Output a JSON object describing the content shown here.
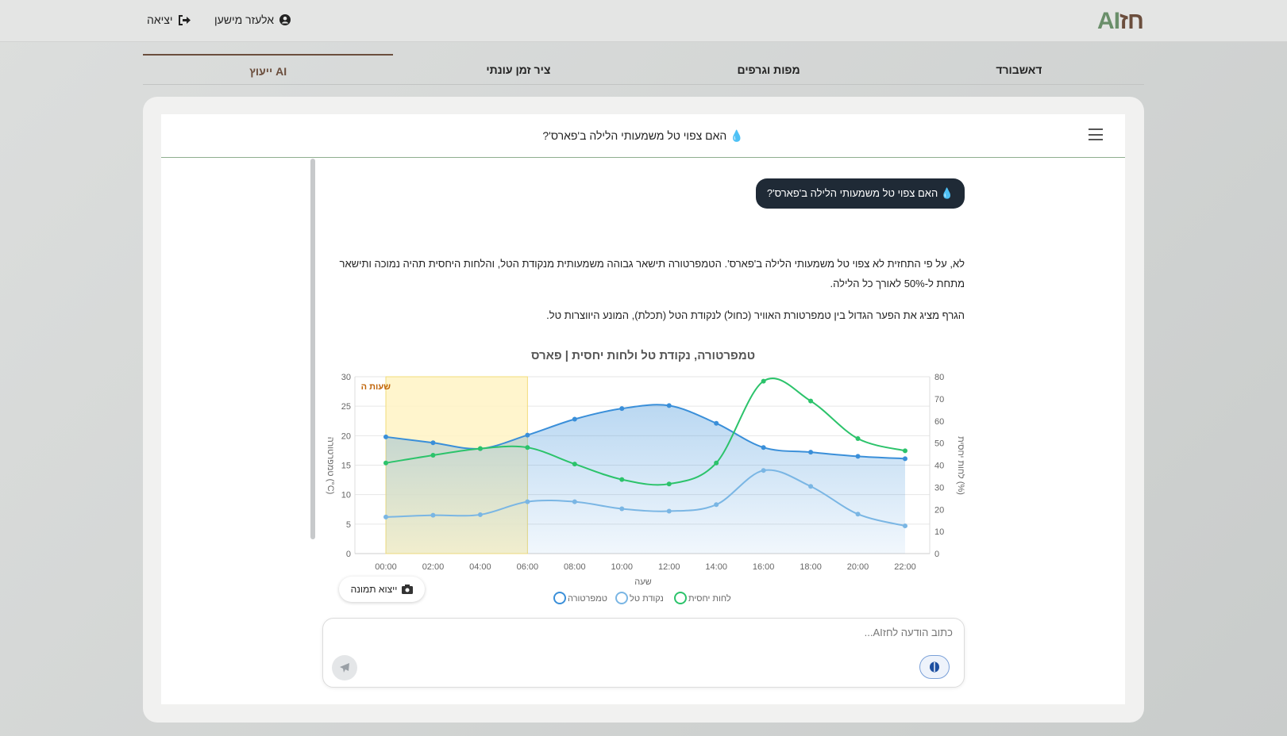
{
  "header": {
    "logo_ai": "AI",
    "logo_he": "חז",
    "user_name": "אלעזר מישען",
    "logout": "יציאה"
  },
  "tabs": [
    {
      "label": "דאשבורד"
    },
    {
      "label": "מפות וגרפים"
    },
    {
      "label": "ציר זמן עונתי"
    },
    {
      "label": "ייעוץ AI"
    }
  ],
  "chat": {
    "title": "💧 האם צפוי טל משמעותי הלילה ב'פארס'?",
    "user_message": "💧 האם צפוי טל משמעותי הלילה ב'פארס'?",
    "answer_p1": "לא, על פי התחזית לא צפוי טל משמעותי הלילה ב'פארס'. הטמפרטורה תישאר גבוהה משמעותית מנקודת הטל, והלחות היחסית תהיה נמוכה ותישאר מתחת ל-50% לאורך כל הלילה.",
    "answer_p2": "הגרף מציג את הפער הגדול בין טמפרטורת האוויר (כחול) לנקודת הטל (תכלת), המונע היווצרות טל.",
    "export_label": "ייצוא תמונה",
    "input_placeholder": "כתוב הודעה לחזAI..."
  },
  "colors": {
    "temp": "#3a8fd9",
    "dew": "#7ab6e4",
    "humidity": "#2cc36b",
    "highlight": "#fff3c4"
  },
  "chart_data": {
    "type": "line",
    "title": "טמפרטורה, נקודת טל ולחות יחסית | פארס",
    "xlabel": "שעה",
    "ylabel": "טמפרטורה (°C)",
    "y2label": "לחות יחסית (%)",
    "x": [
      "00:00",
      "02:00",
      "04:00",
      "06:00",
      "08:00",
      "10:00",
      "12:00",
      "14:00",
      "16:00",
      "18:00",
      "20:00",
      "22:00"
    ],
    "ylim": [
      0,
      30
    ],
    "y2lim": [
      0,
      80
    ],
    "yticks": [
      "0",
      "5",
      "10",
      "15",
      "20",
      "25",
      "30"
    ],
    "y2ticks": [
      "0",
      "10",
      "20",
      "30",
      "40",
      "50",
      "60",
      "70",
      "80"
    ],
    "highlight": {
      "label": "שעות ה",
      "from": "00:00",
      "to": "06:00"
    },
    "series": [
      {
        "name": "טמפרטורה",
        "axis": "y",
        "values": [
          19.8,
          18.8,
          17.8,
          20.1,
          22.8,
          24.6,
          25.1,
          22.1,
          18.0,
          17.2,
          16.5,
          16.1
        ]
      },
      {
        "name": "נקודת טל",
        "axis": "y",
        "values": [
          6.2,
          6.5,
          6.6,
          8.8,
          8.8,
          7.6,
          7.2,
          8.3,
          14.1,
          11.4,
          6.7,
          4.7
        ]
      },
      {
        "name": "לחות יחסית",
        "axis": "y2",
        "values": [
          41,
          44.5,
          47.5,
          48,
          40.5,
          33.5,
          31.5,
          41,
          78,
          69,
          52,
          46.5
        ]
      }
    ],
    "legend_position": "bottom"
  }
}
